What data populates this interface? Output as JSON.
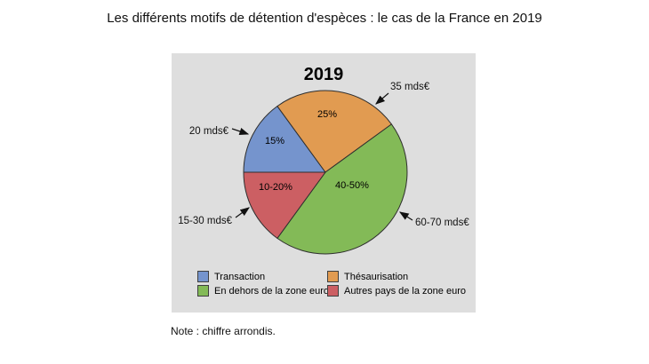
{
  "figure": {
    "title": "Les différents motifs de détention d'espèces : le cas de la France en 2019",
    "note": "Note : chiffre arrondis."
  },
  "chart_data": {
    "type": "pie",
    "title": "2019",
    "start_angle_deg": 180,
    "direction": "clockwise",
    "panel_background": "#dedede",
    "slice_outline_color": "#2e2e2e",
    "legend_position": "bottom",
    "slices": [
      {
        "label": "Transaction",
        "share_label": "15%",
        "value_pct": 15,
        "amount_label": "20 mds€",
        "color": "#7594CD"
      },
      {
        "label": "Thésaurisation",
        "share_label": "25%",
        "value_pct": 25,
        "amount_label": "35 mds€",
        "color": "#E19B51"
      },
      {
        "label": "En dehors de la zone euro",
        "share_label": "40-50%",
        "value_pct": 45,
        "amount_label": "60-70 mds€",
        "color": "#83BA57"
      },
      {
        "label": "Autres pays de la zone euro",
        "share_label": "10-20%",
        "value_pct": 15,
        "amount_label": "15-30 mds€",
        "color": "#CC5F63"
      }
    ]
  }
}
